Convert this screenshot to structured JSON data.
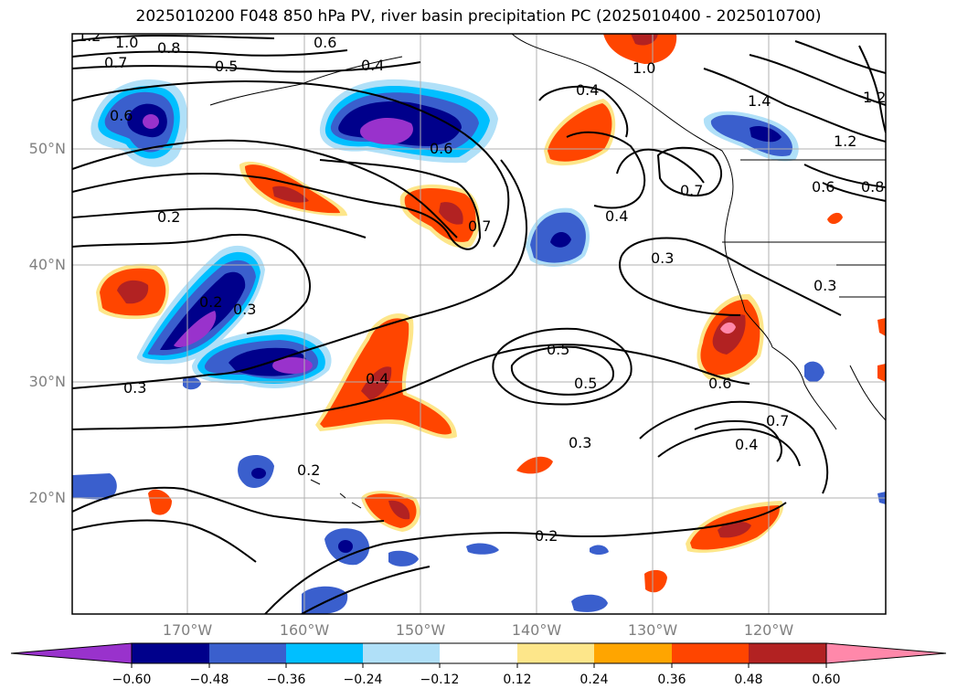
{
  "title": "2025010200 F048 850 hPa PV, river basin precipitation PC (2025010400 - 2025010700)",
  "latitude_labels": [
    "50°N",
    "40°N",
    "30°N",
    "20°N"
  ],
  "longitude_labels": [
    "170°W",
    "160°W",
    "150°W",
    "140°W",
    "130°W",
    "120°W"
  ],
  "colorbar": {
    "ticks": [
      "−0.60",
      "−0.48",
      "−0.36",
      "−0.24",
      "−0.12",
      "0.12",
      "0.24",
      "0.36",
      "0.48",
      "0.60"
    ],
    "colors": [
      "#9932cc",
      "#00008b",
      "#3a5fcd",
      "#00bfff",
      "#b0e0f8",
      "#ffffff",
      "#fde68a",
      "#ffa500",
      "#ff4500",
      "#b22222",
      "#ff88aa"
    ]
  },
  "contour_labels": [
    "1.2",
    "1.0",
    "0.8",
    "0.7",
    "0.5",
    "0.6",
    "0.6",
    "0.4",
    "1.0",
    "0.4",
    "1.4",
    "1.2",
    "1.2",
    "0.6",
    "0.8",
    "0.7",
    "0.2",
    "0.7",
    "0.4",
    "0.6",
    "0.3",
    "0.2",
    "0.3",
    "0.3",
    "0.3",
    "0.4",
    "0.5",
    "0.5",
    "0.6",
    "0.7",
    "0.4",
    "0.3",
    "0.2",
    "0.2"
  ]
}
